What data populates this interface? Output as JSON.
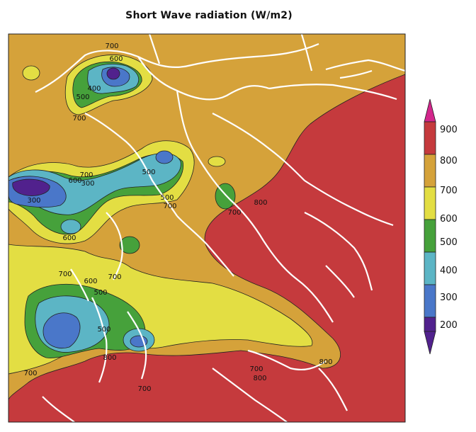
{
  "title": "Short Wave radiation (W/m2)",
  "legend": {
    "levels": [
      "900",
      "800",
      "700",
      "600",
      "500",
      "400",
      "300",
      "200"
    ],
    "colors": [
      "#d3268c",
      "#c53a3d",
      "#d5a23a",
      "#e3de43",
      "#46a13b",
      "#5cb5c5",
      "#4a77c9",
      "#51218d"
    ]
  },
  "contour_labels": [
    "700",
    "600",
    "400",
    "500",
    "700",
    "700",
    "600",
    "500",
    "300",
    "500",
    "700",
    "300",
    "600",
    "500",
    "700",
    "800",
    "700",
    "600",
    "700",
    "500",
    "600",
    "800",
    "700",
    "700",
    "800",
    "800",
    "700"
  ],
  "colors": {
    "sea_high": "#c53a3d",
    "land_mid": "#d5a23a",
    "moderate": "#e3de43",
    "low_green": "#46a13b",
    "low_cyan": "#5cb5c5",
    "low_blue": "#4a77c9",
    "lowest_purple": "#51218d",
    "border": "#ffffff"
  }
}
